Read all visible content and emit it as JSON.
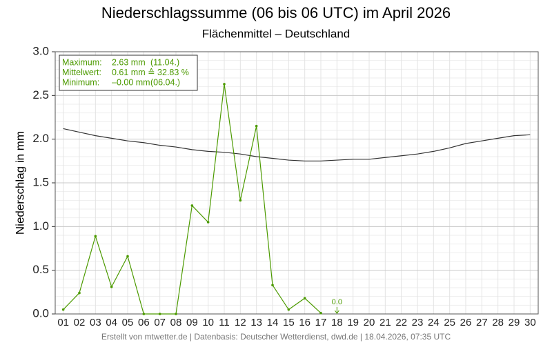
{
  "chart_data": {
    "type": "line",
    "title": "Niederschlagssumme (06 bis 06 UTC) im April 2026",
    "subtitle": "Flächenmittel – Deutschland",
    "y_label": "Niederschlag in mm",
    "footer": "Erstellt von mtwetter.de | Datenbasis: Deutscher Wetterdienst, dwd.de | 18.04.2026, 07:35 UTC",
    "categories": [
      "01",
      "02",
      "03",
      "04",
      "05",
      "06",
      "07",
      "08",
      "09",
      "10",
      "11",
      "12",
      "13",
      "14",
      "15",
      "16",
      "17",
      "18",
      "19",
      "20",
      "21",
      "22",
      "23",
      "24",
      "25",
      "26",
      "27",
      "28",
      "29",
      "30"
    ],
    "series": [
      {
        "color": "#333333",
        "values": [
          2.12,
          2.08,
          2.04,
          2.01,
          1.98,
          1.96,
          1.93,
          1.91,
          1.88,
          1.86,
          1.85,
          1.83,
          1.8,
          1.78,
          1.76,
          1.75,
          1.75,
          1.76,
          1.77,
          1.77,
          1.79,
          1.81,
          1.83,
          1.86,
          1.9,
          1.95,
          1.98,
          2.01,
          2.04,
          2.05
        ]
      },
      {
        "color": "#4c9a00",
        "markers": true,
        "values": [
          0.05,
          0.24,
          0.89,
          0.31,
          0.66,
          0.0,
          0.0,
          0.0,
          1.24,
          1.05,
          2.63,
          1.3,
          2.15,
          0.33,
          0.05,
          0.18,
          0.01,
          null,
          null,
          null,
          null,
          null,
          null,
          null,
          null,
          null,
          null,
          null,
          null,
          null
        ]
      }
    ],
    "ylim": [
      0,
      3.0
    ],
    "yticks": [
      {
        "value": 0,
        "label": "0.0"
      },
      {
        "value": 0.5,
        "label": "0.5"
      },
      {
        "value": 1.0,
        "label": "1.0"
      },
      {
        "value": 1.5,
        "label": "1.5"
      },
      {
        "value": 2.0,
        "label": "2.0"
      },
      {
        "value": 2.5,
        "label": "2.5"
      },
      {
        "value": 3.0,
        "label": "3.0"
      }
    ],
    "grid": true,
    "annotations": [
      {
        "category": "18",
        "text": "0.0",
        "color": "#4c9a00"
      }
    ],
    "stats_box": {
      "color": "#4c9a00",
      "rows": [
        [
          "Maximum:",
          "2.63 mm",
          "(11.04.)"
        ],
        [
          "Mittelwert:",
          "0.61 mm ≙ 32.83 %",
          ""
        ],
        [
          "Minimum:",
          "–0.00 mm",
          "(06.04.)"
        ]
      ]
    }
  }
}
